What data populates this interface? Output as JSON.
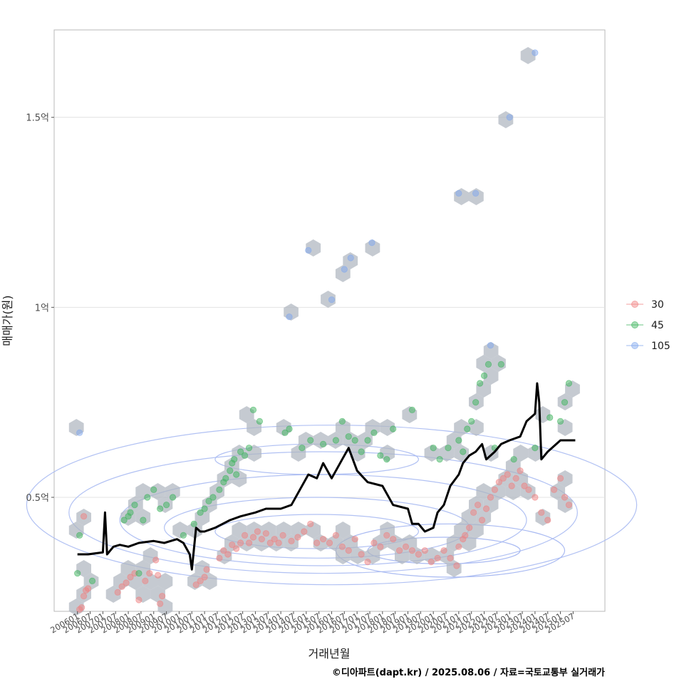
{
  "chart_data": {
    "type": "scatter",
    "ylabel": "매매가(원)",
    "xlabel": "거래년월",
    "caption": "©디아파트(dapt.kr) / 2025.08.06 / 자료=국토교통부 실거래가",
    "ylim": [
      20000000,
      173000000
    ],
    "xlim": [
      "2005-02",
      "2026-10"
    ],
    "grid": "horizontal",
    "y_ticks": [
      {
        "value": 50000000,
        "label": "0.5억"
      },
      {
        "value": 100000000,
        "label": "1억"
      },
      {
        "value": 150000000,
        "label": "1.5억"
      }
    ],
    "x_ticks": [
      "200601",
      "200607",
      "200701",
      "200707",
      "200801",
      "200807",
      "200901",
      "200907",
      "201001",
      "201007",
      "201101",
      "201107",
      "201201",
      "201207",
      "201301",
      "201307",
      "201401",
      "201407",
      "201501",
      "201507",
      "201601",
      "201607",
      "201701",
      "201707",
      "201801",
      "201807",
      "201901",
      "201907",
      "202001",
      "202007",
      "202101",
      "202107",
      "202201",
      "202207",
      "202301",
      "202307",
      "202401",
      "202407",
      "202501",
      "202507"
    ],
    "legend_position": "right",
    "colors": {
      "30": "#f08080",
      "45": "#3cb35c",
      "105": "#7fa6ee",
      "hex": "#aeb6bf",
      "trend": "#000000",
      "contour": "#a9baf2"
    },
    "series": [
      {
        "name": "30",
        "points": [
          [
            "2006-02",
            20.5
          ],
          [
            "2006-03",
            21
          ],
          [
            "2006-04",
            24
          ],
          [
            "2006-05",
            25.5
          ],
          [
            "2006-06",
            26
          ],
          [
            "2006-04",
            45
          ],
          [
            "2007-08",
            25
          ],
          [
            "2007-10",
            26.5
          ],
          [
            "2007-12",
            27.5
          ],
          [
            "2008-02",
            29
          ],
          [
            "2008-04",
            30
          ],
          [
            "2008-06",
            23
          ],
          [
            "2008-09",
            28
          ],
          [
            "2008-11",
            30
          ],
          [
            "2009-02",
            33.5
          ],
          [
            "2009-03",
            29.5
          ],
          [
            "2009-04",
            22
          ],
          [
            "2009-05",
            24
          ],
          [
            "2010-09",
            27
          ],
          [
            "2010-11",
            28
          ],
          [
            "2011-01",
            29
          ],
          [
            "2011-02",
            31
          ],
          [
            "2011-08",
            34
          ],
          [
            "2011-10",
            36
          ],
          [
            "2011-12",
            35
          ],
          [
            "2012-02",
            37.5
          ],
          [
            "2012-04",
            36.5
          ],
          [
            "2012-06",
            38
          ],
          [
            "2012-08",
            40
          ],
          [
            "2012-10",
            38
          ],
          [
            "2012-12",
            39.5
          ],
          [
            "2013-02",
            41
          ],
          [
            "2013-04",
            39
          ],
          [
            "2013-06",
            40.5
          ],
          [
            "2013-08",
            38
          ],
          [
            "2013-10",
            39
          ],
          [
            "2013-12",
            38
          ],
          [
            "2014-02",
            40
          ],
          [
            "2014-06",
            38.5
          ],
          [
            "2014-09",
            39.5
          ],
          [
            "2014-12",
            41
          ],
          [
            "2015-03",
            43
          ],
          [
            "2015-06",
            38
          ],
          [
            "2015-09",
            39
          ],
          [
            "2015-12",
            38
          ],
          [
            "2016-03",
            40
          ],
          [
            "2016-06",
            37
          ],
          [
            "2016-09",
            36
          ],
          [
            "2016-12",
            39
          ],
          [
            "2017-03",
            35
          ],
          [
            "2017-06",
            33
          ],
          [
            "2017-09",
            38
          ],
          [
            "2017-12",
            37
          ],
          [
            "2018-03",
            40
          ],
          [
            "2018-06",
            39
          ],
          [
            "2018-09",
            36
          ],
          [
            "2018-12",
            37
          ],
          [
            "2019-03",
            36
          ],
          [
            "2019-06",
            35
          ],
          [
            "2019-09",
            36
          ],
          [
            "2019-12",
            33
          ],
          [
            "2020-03",
            34
          ],
          [
            "2020-06",
            36
          ],
          [
            "2020-09",
            34
          ],
          [
            "2020-12",
            32
          ],
          [
            "2021-01",
            37
          ],
          [
            "2021-03",
            39
          ],
          [
            "2021-04",
            40
          ],
          [
            "2021-06",
            42
          ],
          [
            "2021-08",
            46
          ],
          [
            "2021-10",
            48
          ],
          [
            "2021-12",
            44
          ],
          [
            "2022-02",
            47
          ],
          [
            "2022-04",
            50
          ],
          [
            "2022-06",
            52
          ],
          [
            "2022-08",
            54
          ],
          [
            "2022-10",
            55
          ],
          [
            "2022-12",
            56
          ],
          [
            "2023-02",
            53
          ],
          [
            "2023-04",
            55
          ],
          [
            "2023-06",
            57
          ],
          [
            "2023-08",
            53
          ],
          [
            "2023-10",
            52
          ],
          [
            "2024-01",
            50
          ],
          [
            "2024-04",
            46
          ],
          [
            "2024-07",
            44
          ],
          [
            "2024-10",
            52
          ],
          [
            "2025-01",
            55
          ],
          [
            "2025-03",
            50
          ],
          [
            "2025-05",
            48
          ]
        ]
      },
      {
        "name": "45",
        "points": [
          [
            "2006-01",
            30
          ],
          [
            "2006-02",
            40
          ],
          [
            "2006-08",
            28
          ],
          [
            "2007-11",
            44
          ],
          [
            "2008-01",
            45
          ],
          [
            "2008-02",
            46
          ],
          [
            "2008-04",
            48
          ],
          [
            "2008-06",
            30
          ],
          [
            "2008-08",
            44
          ],
          [
            "2008-10",
            50
          ],
          [
            "2009-01",
            52
          ],
          [
            "2009-04",
            47
          ],
          [
            "2009-07",
            48
          ],
          [
            "2009-10",
            50
          ],
          [
            "2010-03",
            40
          ],
          [
            "2010-08",
            43
          ],
          [
            "2010-11",
            46
          ],
          [
            "2011-01",
            47
          ],
          [
            "2011-03",
            49
          ],
          [
            "2011-05",
            50
          ],
          [
            "2011-08",
            52
          ],
          [
            "2011-10",
            54
          ],
          [
            "2011-11",
            55
          ],
          [
            "2012-01",
            57
          ],
          [
            "2012-02",
            59
          ],
          [
            "2012-03",
            60
          ],
          [
            "2012-04",
            56
          ],
          [
            "2012-06",
            62
          ],
          [
            "2012-08",
            61
          ],
          [
            "2012-10",
            63
          ],
          [
            "2012-12",
            73
          ],
          [
            "2013-03",
            70
          ],
          [
            "2014-03",
            67
          ],
          [
            "2014-05",
            68
          ],
          [
            "2014-11",
            63
          ],
          [
            "2015-03",
            65
          ],
          [
            "2015-09",
            64
          ],
          [
            "2016-03",
            65
          ],
          [
            "2016-06",
            70
          ],
          [
            "2016-09",
            66
          ],
          [
            "2016-12",
            65
          ],
          [
            "2017-03",
            62
          ],
          [
            "2017-06",
            65
          ],
          [
            "2017-09",
            67
          ],
          [
            "2017-12",
            61
          ],
          [
            "2018-03",
            60
          ],
          [
            "2018-06",
            68
          ],
          [
            "2019-03",
            73
          ],
          [
            "2020-01",
            63
          ],
          [
            "2020-04",
            60
          ],
          [
            "2020-08",
            63
          ],
          [
            "2021-01",
            65
          ],
          [
            "2021-03",
            62
          ],
          [
            "2021-05",
            68
          ],
          [
            "2021-07",
            70
          ],
          [
            "2021-09",
            75
          ],
          [
            "2021-11",
            80
          ],
          [
            "2022-01",
            82
          ],
          [
            "2022-03",
            85
          ],
          [
            "2022-06",
            63
          ],
          [
            "2022-09",
            85
          ],
          [
            "2023-03",
            60
          ],
          [
            "2024-01",
            63
          ],
          [
            "2024-08",
            71
          ],
          [
            "2025-01",
            70
          ],
          [
            "2025-03",
            75
          ],
          [
            "2025-05",
            80
          ]
        ]
      },
      {
        "name": "105",
        "points": [
          [
            "2006-02",
            67
          ],
          [
            "2014-05",
            97.5
          ],
          [
            "2015-02",
            115
          ],
          [
            "2016-01",
            102
          ],
          [
            "2016-07",
            110
          ],
          [
            "2016-10",
            113
          ],
          [
            "2017-08",
            117
          ],
          [
            "2021-01",
            130
          ],
          [
            "2021-09",
            130
          ],
          [
            "2022-04",
            90
          ],
          [
            "2023-01",
            150
          ],
          [
            "2024-01",
            167
          ]
        ]
      }
    ],
    "trend": [
      [
        "2006-01",
        35
      ],
      [
        "2006-06",
        35
      ],
      [
        "2007-01",
        35.5
      ],
      [
        "2007-02",
        46
      ],
      [
        "2007-03",
        35
      ],
      [
        "2007-06",
        37
      ],
      [
        "2007-09",
        37.5
      ],
      [
        "2008-01",
        37
      ],
      [
        "2008-06",
        38
      ],
      [
        "2009-01",
        38.5
      ],
      [
        "2009-06",
        38
      ],
      [
        "2009-12",
        39
      ],
      [
        "2010-03",
        38
      ],
      [
        "2010-06",
        35
      ],
      [
        "2010-07",
        31
      ],
      [
        "2010-09",
        42
      ],
      [
        "2010-11",
        41
      ],
      [
        "2011-01",
        41
      ],
      [
        "2011-06",
        42
      ],
      [
        "2012-01",
        44
      ],
      [
        "2012-06",
        45
      ],
      [
        "2013-01",
        46
      ],
      [
        "2013-06",
        47
      ],
      [
        "2014-01",
        47
      ],
      [
        "2014-06",
        48
      ],
      [
        "2014-10",
        52
      ],
      [
        "2015-02",
        56
      ],
      [
        "2015-06",
        55
      ],
      [
        "2015-09",
        59
      ],
      [
        "2016-01",
        55
      ],
      [
        "2016-06",
        60
      ],
      [
        "2016-09",
        63
      ],
      [
        "2017-01",
        57
      ],
      [
        "2017-06",
        54
      ],
      [
        "2018-01",
        53
      ],
      [
        "2018-06",
        48
      ],
      [
        "2019-01",
        47
      ],
      [
        "2019-03",
        43
      ],
      [
        "2019-06",
        43
      ],
      [
        "2019-09",
        41
      ],
      [
        "2020-01",
        42
      ],
      [
        "2020-03",
        46
      ],
      [
        "2020-06",
        48
      ],
      [
        "2020-09",
        53
      ],
      [
        "2021-01",
        56
      ],
      [
        "2021-03",
        59
      ],
      [
        "2021-06",
        61
      ],
      [
        "2021-09",
        62
      ],
      [
        "2021-12",
        64
      ],
      [
        "2022-02",
        60
      ],
      [
        "2022-06",
        62
      ],
      [
        "2022-09",
        64
      ],
      [
        "2023-01",
        65
      ],
      [
        "2023-06",
        66
      ],
      [
        "2023-09",
        70
      ],
      [
        "2024-01",
        72
      ],
      [
        "2024-02",
        80
      ],
      [
        "2024-03",
        75
      ],
      [
        "2024-04",
        60
      ],
      [
        "2024-07",
        62
      ],
      [
        "2025-01",
        65
      ],
      [
        "2025-08",
        65
      ]
    ]
  }
}
